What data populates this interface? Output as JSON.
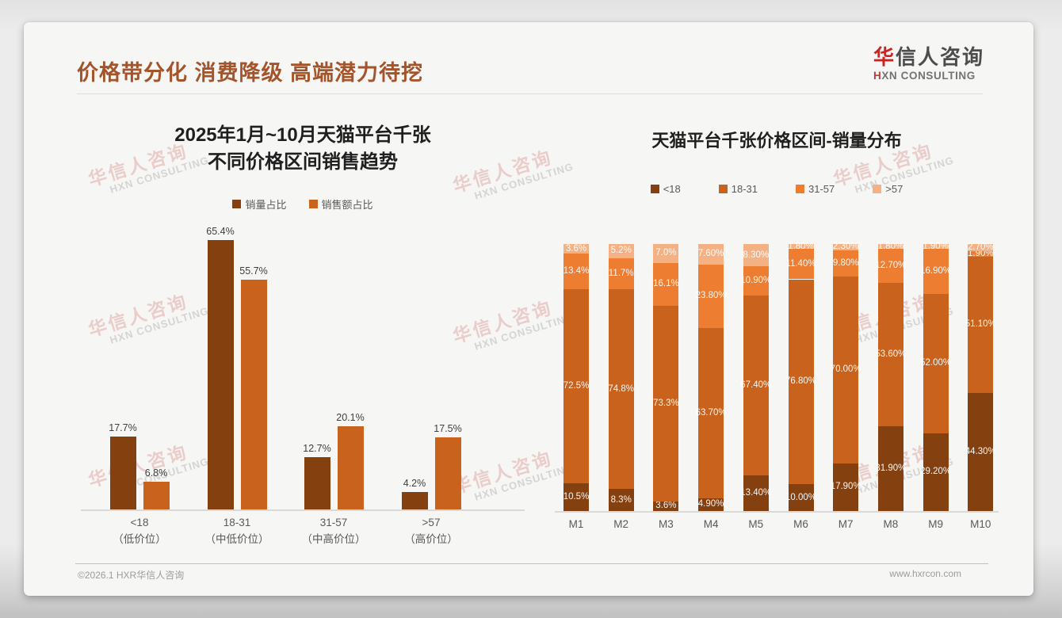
{
  "page_title": "价格带分化 消费降级 高端潜力待挖",
  "logo": {
    "cn_first": "华",
    "cn_rest": "信人咨询",
    "en_first": "H",
    "en_rest": "XN CONSULTING"
  },
  "watermark": {
    "cn": "华信人咨询",
    "en": "HXN CONSULTING"
  },
  "footer": {
    "copyright": "©2026.1 HXR华信人咨询",
    "website": "www.hxrcon.com"
  },
  "brand_colors": {
    "title_brown": "#a4542a",
    "logo_red": "#d02121"
  },
  "chart_data": [
    {
      "type": "bar",
      "title_lines": [
        "2025年1月~10月天猫平台千张",
        "不同价格区间销售趋势"
      ],
      "categories": [
        "<18",
        "18-31",
        "31-57",
        ">57"
      ],
      "category_sublabels": [
        "（低价位）",
        "（中低价位）",
        "（中高价位）",
        "（高价位）"
      ],
      "ylim": [
        0,
        70
      ],
      "grid": false,
      "legend_position": "top",
      "series": [
        {
          "name": "销量占比",
          "color": "#84400F",
          "values": [
            17.7,
            65.4,
            12.7,
            4.2
          ],
          "labels": [
            "17.7%",
            "65.4%",
            "12.7%",
            "4.2%"
          ]
        },
        {
          "name": "销售额占比",
          "color": "#C8621C",
          "values": [
            6.8,
            55.7,
            20.1,
            17.5
          ],
          "labels": [
            "6.8%",
            "55.7%",
            "20.1%",
            "17.5%"
          ]
        }
      ]
    },
    {
      "type": "bar-stacked-100",
      "title": "天猫平台千张价格区间-销量分布",
      "categories": [
        "M1",
        "M2",
        "M3",
        "M4",
        "M5",
        "M6",
        "M7",
        "M8",
        "M9",
        "M10"
      ],
      "ylim": [
        0,
        100
      ],
      "grid": false,
      "legend_position": "top",
      "series": [
        {
          "name": "<18",
          "color": "#84400F",
          "values": [
            10.5,
            8.3,
            3.6,
            4.9,
            13.4,
            10.0,
            17.9,
            31.9,
            29.2,
            44.3
          ],
          "labels": [
            "10.5%",
            "8.3%",
            "3.6%",
            "4.90%",
            "13.40%",
            "10.00%",
            "17.90%",
            "31.90%",
            "29.20%",
            "44.30%"
          ]
        },
        {
          "name": "18-31",
          "color": "#C8621C",
          "values": [
            72.5,
            74.8,
            73.3,
            63.7,
            67.4,
            76.8,
            70.0,
            53.6,
            52.0,
            51.1
          ],
          "labels": [
            "72.5%",
            "74.8%",
            "73.3%",
            "63.70%",
            "67.40%",
            "76.80%",
            "70.00%",
            "53.60%",
            "52.00%",
            "51.10%"
          ]
        },
        {
          "name": "31-57",
          "color": "#ED7D31",
          "values": [
            13.4,
            11.7,
            16.1,
            23.8,
            10.9,
            11.4,
            9.8,
            12.7,
            16.9,
            1.9
          ],
          "labels": [
            "13.4%",
            "11.7%",
            "16.1%",
            "23.80%",
            "10.90%",
            "11.40%",
            "9.80%",
            "12.70%",
            "16.90%",
            "1.90%"
          ]
        },
        {
          "name": ">57",
          "color": "#F4B183",
          "values": [
            3.6,
            5.2,
            7.0,
            7.6,
            8.3,
            1.8,
            2.3,
            1.8,
            1.9,
            2.7
          ],
          "labels": [
            "3.6%",
            "5.2%",
            "7.0%",
            "7.60%",
            "8.30%",
            "1.80%",
            "2.30%",
            "1.80%",
            "1.90%",
            "2.70%"
          ]
        }
      ]
    }
  ]
}
